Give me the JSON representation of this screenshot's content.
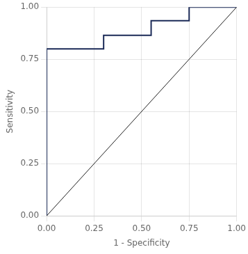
{
  "chart_data": {
    "type": "line",
    "xlabel": "1 - Specificity",
    "ylabel": "Sensitivity",
    "series": [
      {
        "x": [
          0.0,
          1.0
        ],
        "values": [
          0.0,
          1.0
        ],
        "color": "#222222"
      },
      {
        "x": [
          0.0,
          0.0,
          0.3,
          0.3,
          0.38,
          0.55,
          0.55,
          0.75,
          0.75,
          1.0
        ],
        "values": [
          0.0,
          0.8,
          0.8,
          0.865,
          0.865,
          0.865,
          0.935,
          0.935,
          1.0,
          1.0
        ],
        "color": "#1b2a57"
      }
    ],
    "xlim": [
      0.0,
      1.0
    ],
    "ylim": [
      0.0,
      1.0
    ],
    "xticks": [
      {
        "value": 0.0,
        "label": "0.00"
      },
      {
        "value": 0.25,
        "label": "0.25"
      },
      {
        "value": 0.5,
        "label": "0.50"
      },
      {
        "value": 0.75,
        "label": "0.75"
      },
      {
        "value": 1.0,
        "label": "1.00"
      }
    ],
    "yticks": [
      {
        "value": 0.0,
        "label": "0.00"
      },
      {
        "value": 0.25,
        "label": "0.25"
      },
      {
        "value": 0.5,
        "label": "0.50"
      },
      {
        "value": 0.75,
        "label": "0.75"
      },
      {
        "value": 1.0,
        "label": "1.00"
      }
    ],
    "grid": true
  }
}
